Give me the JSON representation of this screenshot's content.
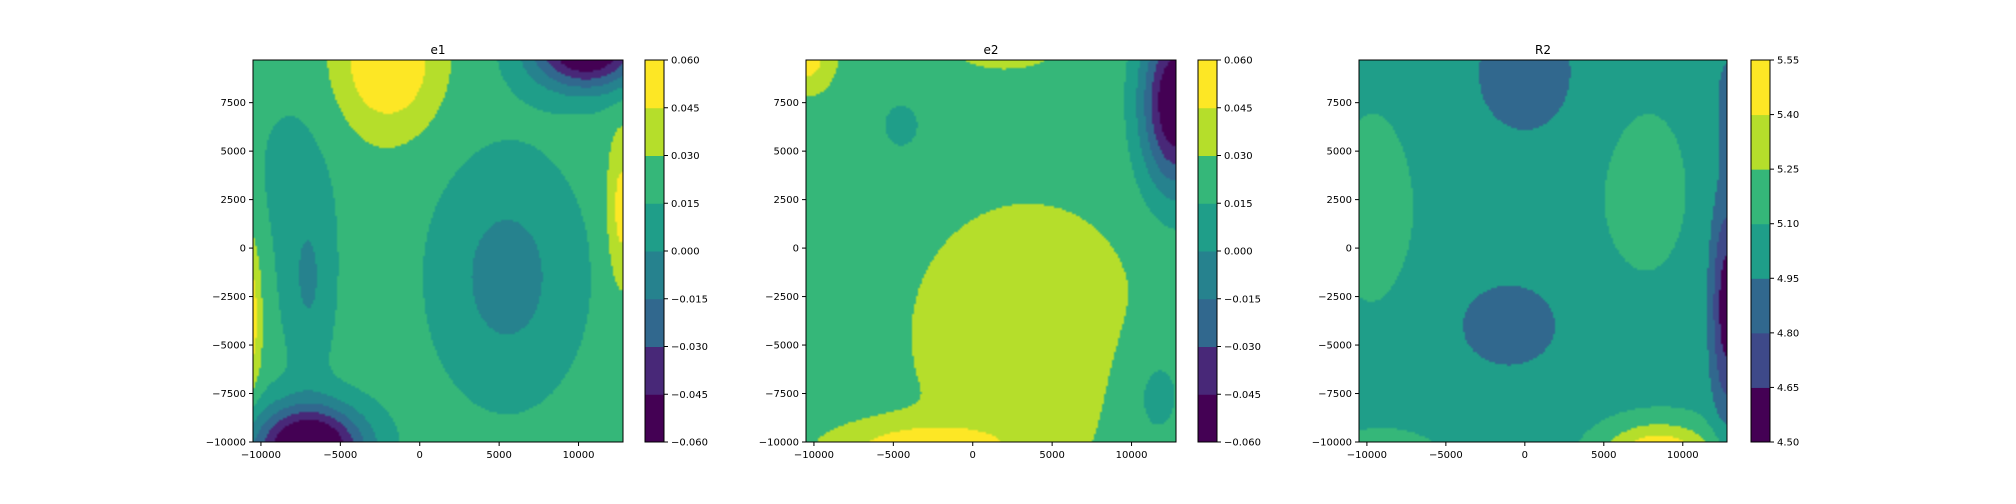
{
  "colors": {
    "viridis_10": [
      "#440154",
      "#482878",
      "#3e4989",
      "#31688e",
      "#26828e",
      "#1f9e89",
      "#35b779",
      "#6ece58",
      "#b5de2b",
      "#fde725"
    ],
    "axis": "#000000",
    "background": "#ffffff"
  },
  "chart_data": [
    {
      "type": "contour",
      "title": "e1",
      "xlabel": "",
      "ylabel": "",
      "xlim": [
        -10500,
        12800
      ],
      "ylim": [
        -10000,
        9700
      ],
      "xticks": [
        "−10000",
        "−5000",
        "0",
        "5000",
        "10000"
      ],
      "xtick_values": [
        -10000,
        -5000,
        0,
        5000,
        10000
      ],
      "yticks": [
        "−10000",
        "−7500",
        "−5000",
        "−2500",
        "0",
        "2500",
        "5000",
        "7500"
      ],
      "ytick_values": [
        -10000,
        -7500,
        -5000,
        -2500,
        0,
        2500,
        5000,
        7500
      ],
      "levels": [
        -0.06,
        -0.045,
        -0.03,
        -0.015,
        0.0,
        0.015,
        0.03,
        0.045,
        0.06
      ],
      "colorbar_ticks": [
        "−0.060",
        "−0.045",
        "−0.030",
        "−0.015",
        "0.000",
        "0.015",
        "0.030",
        "0.045",
        "0.060"
      ],
      "field": {
        "base": 0.022,
        "bumps": [
          {
            "x": -2000,
            "y": 9500,
            "a": 0.04,
            "sx": 3200,
            "sy": 3500
          },
          {
            "x": 5500,
            "y": -1500,
            "a": -0.028,
            "sx": 4500,
            "sy": 6000
          },
          {
            "x": 10500,
            "y": 10200,
            "a": -0.09,
            "sx": 3500,
            "sy": 2000
          },
          {
            "x": -7000,
            "y": -10300,
            "a": -0.1,
            "sx": 3500,
            "sy": 2200
          },
          {
            "x": -7000,
            "y": -2000,
            "a": -0.022,
            "sx": 1600,
            "sy": 4500
          },
          {
            "x": -10700,
            "y": -3500,
            "a": 0.035,
            "sx": 700,
            "sy": 4000
          },
          {
            "x": 12700,
            "y": 2000,
            "a": 0.03,
            "sx": 900,
            "sy": 4000
          },
          {
            "x": -8000,
            "y": 4000,
            "a": -0.01,
            "sx": 3000,
            "sy": 5000
          }
        ]
      }
    },
    {
      "type": "contour",
      "title": "e2",
      "xlabel": "",
      "ylabel": "",
      "xlim": [
        -10500,
        12800
      ],
      "ylim": [
        -10000,
        9700
      ],
      "xticks": [
        "−10000",
        "−5000",
        "0",
        "5000",
        "10000"
      ],
      "xtick_values": [
        -10000,
        -5000,
        0,
        5000,
        10000
      ],
      "yticks": [
        "−10000",
        "−7500",
        "−5000",
        "−2500",
        "0",
        "2500",
        "5000",
        "7500"
      ],
      "ytick_values": [
        -10000,
        -7500,
        -5000,
        -2500,
        0,
        2500,
        5000,
        7500
      ],
      "levels": [
        -0.06,
        -0.045,
        -0.03,
        -0.015,
        0.0,
        0.015,
        0.03,
        0.045,
        0.06
      ],
      "colorbar_ticks": [
        "−0.060",
        "−0.045",
        "−0.030",
        "−0.015",
        "0.000",
        "0.015",
        "0.030",
        "0.045",
        "0.060"
      ],
      "field": {
        "base": 0.025,
        "bumps": [
          {
            "x": -4500,
            "y": 6300,
            "a": -0.016,
            "sx": 1500,
            "sy": 1500
          },
          {
            "x": 3500,
            "y": -4500,
            "a": 0.018,
            "sx": 6500,
            "sy": 6000
          },
          {
            "x": -3000,
            "y": -10400,
            "a": 0.035,
            "sx": 5000,
            "sy": 1300
          },
          {
            "x": -10500,
            "y": 9800,
            "a": 0.03,
            "sx": 1500,
            "sy": 1500
          },
          {
            "x": 2000,
            "y": 10500,
            "a": 0.01,
            "sx": 4000,
            "sy": 1500
          },
          {
            "x": 12800,
            "y": 7500,
            "a": -0.09,
            "sx": 2200,
            "sy": 4500
          },
          {
            "x": 11500,
            "y": -7500,
            "a": -0.015,
            "sx": 2500,
            "sy": 3500
          }
        ]
      }
    },
    {
      "type": "contour",
      "title": "R2",
      "xlabel": "",
      "ylabel": "",
      "xlim": [
        -10500,
        12800
      ],
      "ylim": [
        -10000,
        9700
      ],
      "xticks": [
        "−10000",
        "−5000",
        "0",
        "5000",
        "10000"
      ],
      "xtick_values": [
        -10000,
        -5000,
        0,
        5000,
        10000
      ],
      "yticks": [
        "−10000",
        "−7500",
        "−5000",
        "−2500",
        "0",
        "2500",
        "5000",
        "7500"
      ],
      "ytick_values": [
        -10000,
        -7500,
        -5000,
        -2500,
        0,
        2500,
        5000,
        7500
      ],
      "levels": [
        4.5,
        4.65,
        4.8,
        4.95,
        5.1,
        5.25,
        5.4,
        5.55
      ],
      "colorbar_ticks": [
        "4.50",
        "4.65",
        "4.80",
        "4.95",
        "5.10",
        "5.25",
        "5.40",
        "5.55"
      ],
      "field": {
        "base": 5.05,
        "bumps": [
          {
            "x": 0,
            "y": 9000,
            "a": -0.14,
            "sx": 5000,
            "sy": 5000
          },
          {
            "x": -1000,
            "y": -4000,
            "a": -0.14,
            "sx": 5000,
            "sy": 3500
          },
          {
            "x": 7500,
            "y": 3000,
            "a": 0.16,
            "sx": 2500,
            "sy": 4000
          },
          {
            "x": -9500,
            "y": 2000,
            "a": 0.14,
            "sx": 2500,
            "sy": 5000
          },
          {
            "x": 8500,
            "y": -10800,
            "a": 0.55,
            "sx": 3500,
            "sy": 1700
          },
          {
            "x": -9000,
            "y": -10800,
            "a": 0.25,
            "sx": 3000,
            "sy": 1200
          },
          {
            "x": 12800,
            "y": -3000,
            "a": -0.5,
            "sx": 1000,
            "sy": 5500
          },
          {
            "x": 12800,
            "y": 7500,
            "a": -0.15,
            "sx": 800,
            "sy": 3000
          }
        ]
      }
    }
  ]
}
